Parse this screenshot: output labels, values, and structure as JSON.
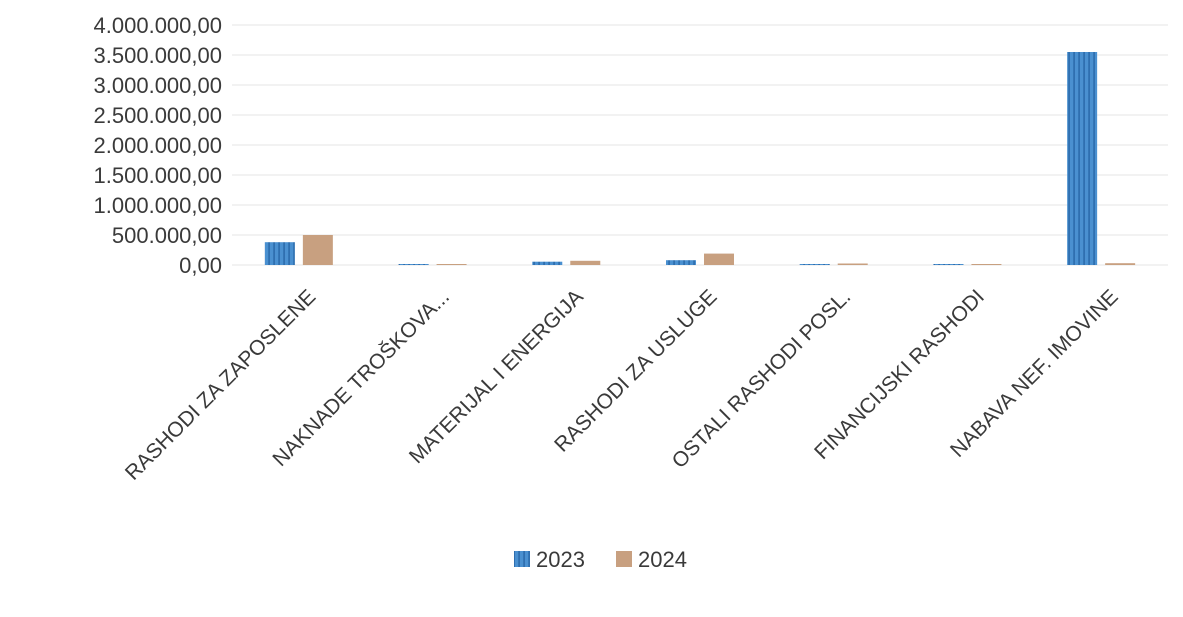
{
  "chart_data": {
    "type": "bar",
    "title": "",
    "xlabel": "",
    "ylabel": "",
    "categories": [
      "RASHODI ZA ZAPOSLENE",
      "NAKNADE TROŠKOVA...",
      "MATERIJAL I ENERGIJA",
      "RASHODI ZA USLUGE",
      "OSTALI RASHODI POSL.",
      "FINANCIJSKI RASHODI",
      "NABAVA NEF. IMOVINE"
    ],
    "series": [
      {
        "name": "2023",
        "color": "#4a90d0",
        "values": [
          380000,
          10000,
          55000,
          80000,
          15000,
          5000,
          3550000
        ]
      },
      {
        "name": "2024",
        "color": "#c8a080",
        "values": [
          500000,
          15000,
          70000,
          190000,
          25000,
          5000,
          30000
        ]
      }
    ],
    "yticks": [
      "0,00",
      "500.000,00",
      "1.000.000,00",
      "1.500.000,00",
      "2.000.000,00",
      "2.500.000,00",
      "3.000.000,00",
      "3.500.000,00",
      "4.000.000,00"
    ],
    "ylim": [
      0,
      4000000
    ],
    "grid": true,
    "legend_position": "bottom"
  }
}
